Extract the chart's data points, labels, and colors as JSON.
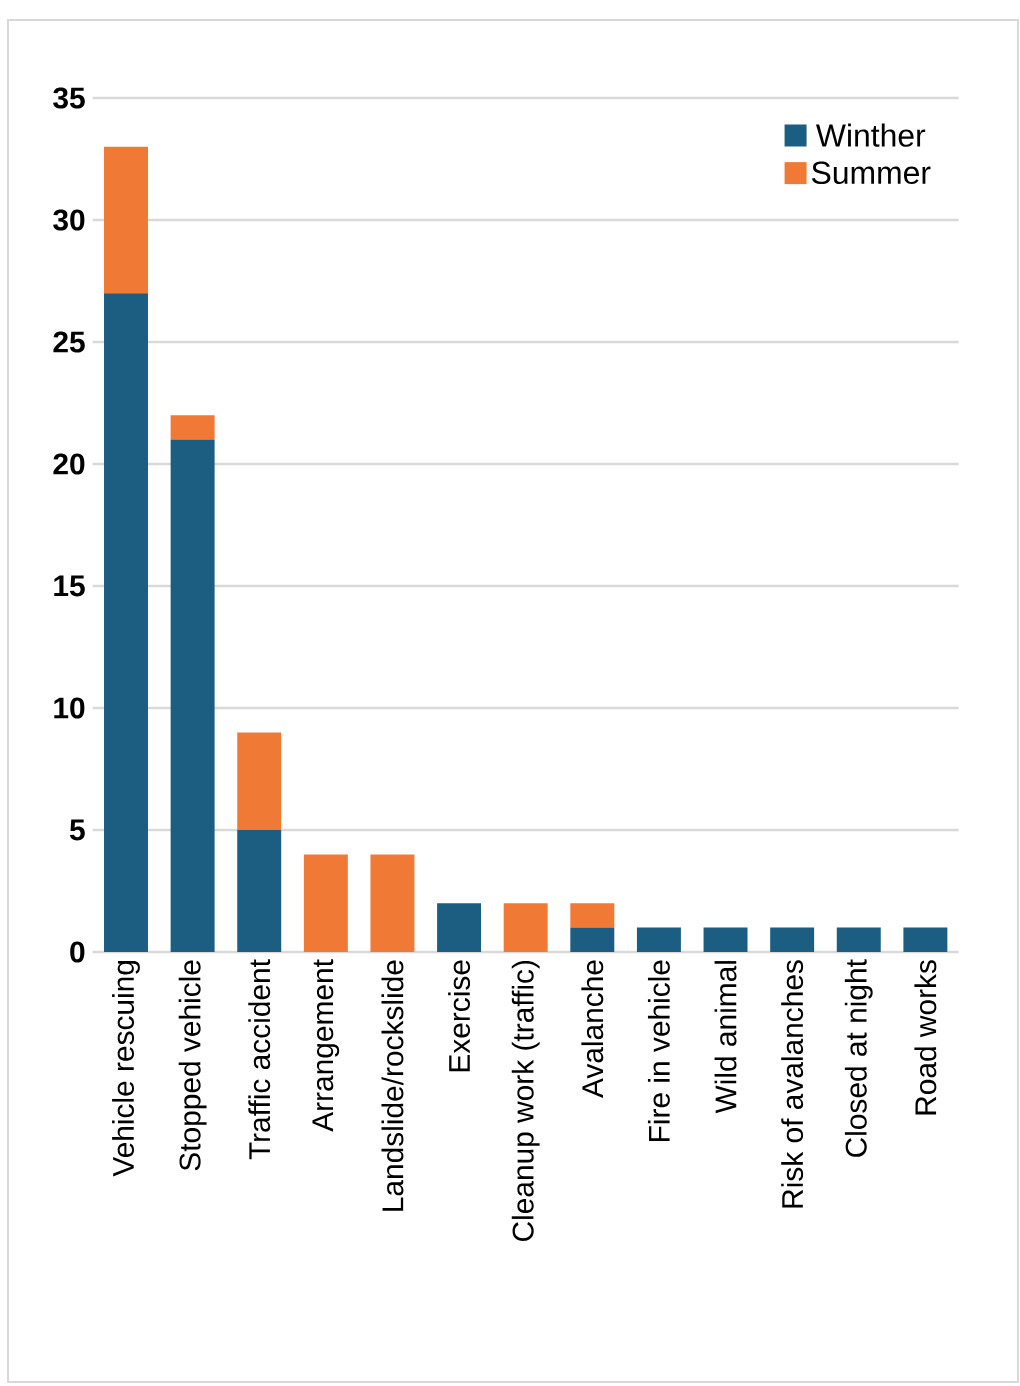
{
  "chart_data": {
    "type": "bar",
    "stacked": true,
    "categories": [
      "Vehicle rescuing",
      "Stopped vehicle",
      "Traffic accident",
      "Arrangement",
      "Landslide/rockslide",
      "Exercise",
      "Cleanup work (traffic)",
      "Avalanche",
      "Fire in vehicle",
      "Wild animal",
      "Risk of avalanches",
      "Closed at night",
      "Road works"
    ],
    "series": [
      {
        "name": "Winther",
        "color": "#1b5e82",
        "values": [
          27,
          21,
          5,
          0,
          0,
          2,
          0,
          1,
          1,
          1,
          1,
          1,
          1
        ]
      },
      {
        "name": "Summer",
        "color": "#f07a35",
        "values": [
          6,
          1,
          4,
          4,
          4,
          0,
          2,
          1,
          0,
          0,
          0,
          0,
          0
        ]
      }
    ],
    "ylim": [
      0,
      35
    ],
    "yticks": [
      0,
      5,
      10,
      15,
      20,
      25,
      30,
      35
    ],
    "grid": "y",
    "legend": "top right"
  }
}
